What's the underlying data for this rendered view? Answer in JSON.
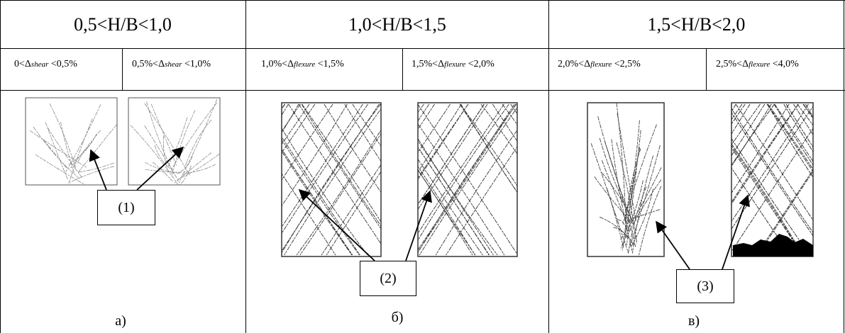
{
  "columns": [
    {
      "header": "0,5<H/B<1,0",
      "sub": [
        {
          "pre": "0<",
          "sym": "Δ",
          "idx": "shear",
          "post": " <0,5%"
        },
        {
          "pre": "0,5%<",
          "sym": "Δ",
          "idx": "shear",
          "post": " <1,0%"
        }
      ],
      "callout": "(1)",
      "caption": "а)"
    },
    {
      "header": "1,0<H/B<1,5",
      "sub": [
        {
          "pre": "1,0%<",
          "sym": "Δ",
          "idx": "flexure",
          "post": " <1,5%"
        },
        {
          "pre": "1,5%<",
          "sym": "Δ",
          "idx": "flexure",
          "post": " <2,0%"
        }
      ],
      "callout": "(2)",
      "caption": "б)"
    },
    {
      "header": "1,5<H/B<2,0",
      "sub": [
        {
          "pre": "2,0%<",
          "sym": "Δ",
          "idx": "flexure",
          "post": " <2,5%"
        },
        {
          "pre": "2,5%<",
          "sym": "Δ",
          "idx": "flexure",
          "post": " <4,0%"
        }
      ],
      "callout": "(3)",
      "caption": "в)"
    }
  ]
}
